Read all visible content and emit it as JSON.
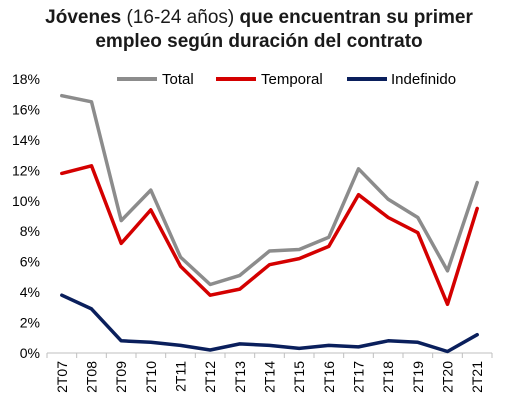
{
  "chart_data": {
    "type": "line",
    "title": {
      "line1_bold": "Jóvenes",
      "line1_normal": " (16-24 años) ",
      "line1_bold_end": "que encuentran su primer",
      "line2": "empleo según duración del contrato"
    },
    "categories": [
      "2T07",
      "2T08",
      "2T09",
      "2T10",
      "2T11",
      "2T12",
      "2T13",
      "2T14",
      "2T15",
      "2T16",
      "2T17",
      "2T18",
      "2T19",
      "2T20",
      "2T21"
    ],
    "series": [
      {
        "name": "Total",
        "color": "#8c8c8c",
        "values": [
          16.9,
          16.5,
          8.7,
          10.7,
          6.3,
          4.5,
          5.1,
          6.7,
          6.8,
          7.6,
          12.1,
          10.1,
          8.9,
          5.4,
          11.2
        ]
      },
      {
        "name": "Temporal",
        "color": "#d40000",
        "values": [
          11.8,
          12.3,
          7.2,
          9.4,
          5.7,
          3.8,
          4.2,
          5.8,
          6.2,
          7.0,
          10.4,
          8.9,
          7.9,
          3.2,
          9.5
        ]
      },
      {
        "name": "Indefinido",
        "color": "#0a1f5c",
        "values": [
          3.8,
          2.9,
          0.8,
          0.7,
          0.5,
          0.2,
          0.6,
          0.5,
          0.3,
          0.5,
          0.4,
          0.8,
          0.7,
          0.1,
          1.2
        ]
      }
    ],
    "yticks": [
      "0%",
      "2%",
      "4%",
      "6%",
      "8%",
      "10%",
      "12%",
      "14%",
      "16%",
      "18%"
    ],
    "ylim": [
      0,
      18
    ],
    "legend_position": "top",
    "grid": false
  }
}
